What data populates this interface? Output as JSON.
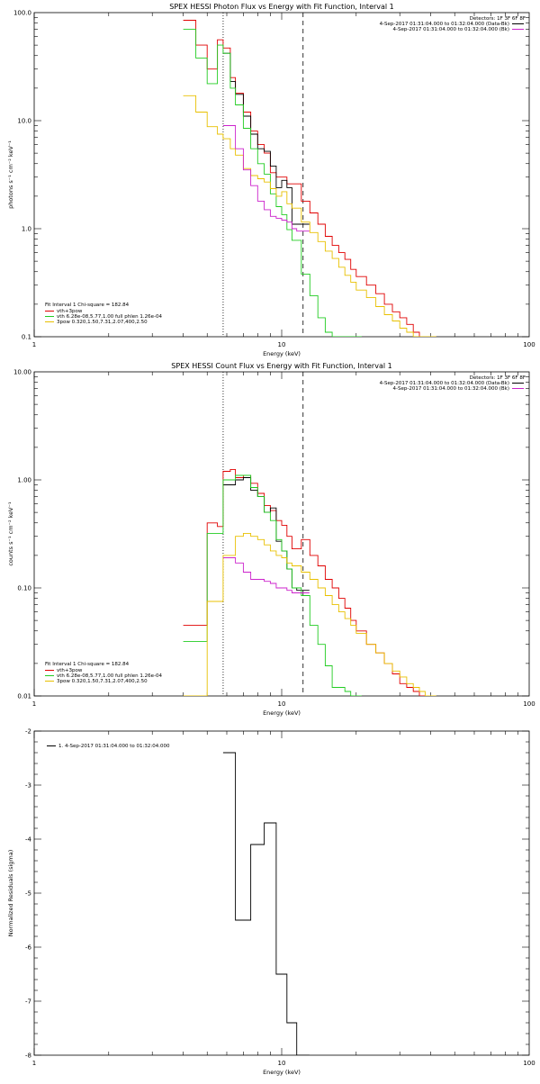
{
  "colors": {
    "black": "#000000",
    "red": "#e00000",
    "green": "#22cc22",
    "yellow": "#e8c000",
    "magenta": "#cc22cc"
  },
  "chart_data": [
    {
      "type": "line",
      "step": true,
      "title": "SPEX HESSI Photon Flux vs Energy with Fit Function, Interval 1",
      "xlabel": "Energy (keV)",
      "ylabel": "photons s⁻¹ cm⁻² keV⁻¹",
      "xscale": "log",
      "yscale": "log",
      "xlim": [
        1,
        100
      ],
      "ylim": [
        0.1,
        100
      ],
      "xticks": [
        {
          "v": 1,
          "label": "1"
        },
        {
          "v": 10,
          "label": "10"
        },
        {
          "v": 100,
          "label": "100"
        }
      ],
      "yticks": [
        {
          "v": 0.1,
          "label": "0.1"
        },
        {
          "v": 1,
          "label": "1.0"
        },
        {
          "v": 10,
          "label": "10.0"
        },
        {
          "v": 100,
          "label": "100.0"
        }
      ],
      "vlines": [
        {
          "x": 5.8,
          "style": "dotted",
          "color": "black"
        },
        {
          "x": 12.2,
          "style": "dashed",
          "color": "black"
        }
      ],
      "detectors": "Detectors: 1F 3F 6F 8F",
      "legend_right": [
        {
          "text": "4-Sep-2017 01:31:04.000 to 01:32:04.000 (Data-Bk)",
          "color": "black"
        },
        {
          "text": "4-Sep-2017 01:31:04.000 to 01:32:04.000 (Bk)",
          "color": "magenta"
        }
      ],
      "fit_header": "Fit Interval 1    Chi-square = 182.84",
      "legend_left": [
        {
          "text": "vth+3pow",
          "color": "red"
        },
        {
          "text": "vth 6.28e-08,5.77,1.00  full phlen 1.26e-04",
          "color": "green"
        },
        {
          "text": "3pow 0.320,1.50,7.31,2.07,400,2.50",
          "color": "yellow"
        }
      ],
      "series": [
        {
          "color": "red",
          "x": [
            4,
            4.5,
            5,
            5.5,
            5.8,
            6.2,
            6.5,
            7,
            7.5,
            8,
            8.5,
            9,
            9.5,
            10,
            10.5,
            11,
            12,
            13,
            14,
            15,
            16,
            17,
            18,
            19,
            20,
            22,
            24,
            26,
            28,
            30,
            32,
            34,
            36,
            38,
            40
          ],
          "y": [
            85,
            50,
            30,
            56,
            47,
            25,
            18,
            12,
            8,
            6,
            5,
            3.3,
            3,
            3,
            2.6,
            2.6,
            1.8,
            1.4,
            1.1,
            0.85,
            0.7,
            0.6,
            0.52,
            0.42,
            0.36,
            0.3,
            0.25,
            0.2,
            0.17,
            0.15,
            0.13,
            0.11,
            0.1,
            0.09,
            0.09
          ]
        },
        {
          "color": "black",
          "x": [
            5.8,
            6.2,
            6.5,
            7,
            7.5,
            8,
            8.5,
            9,
            9.5,
            10,
            10.5,
            11,
            11.5,
            12.2
          ],
          "y": [
            42,
            23,
            17.5,
            11,
            7.5,
            5.5,
            5.2,
            3.8,
            2.4,
            2.8,
            2.4,
            1.1,
            1.1,
            1.1
          ]
        },
        {
          "color": "green",
          "x": [
            4,
            4.5,
            5,
            5.5,
            5.8,
            6.2,
            6.5,
            7,
            7.5,
            8,
            8.5,
            9,
            9.5,
            10,
            10.5,
            11,
            12,
            13,
            14,
            15,
            16,
            17,
            18,
            19,
            20
          ],
          "y": [
            70,
            38,
            22,
            50,
            42,
            20,
            14,
            8.5,
            5.5,
            4,
            3.2,
            2.1,
            1.6,
            1.35,
            0.98,
            0.78,
            0.38,
            0.24,
            0.15,
            0.11,
            0.1,
            0.1,
            0.1,
            0.1,
            0.1
          ]
        },
        {
          "color": "yellow",
          "x": [
            4,
            4.5,
            5,
            5.5,
            5.8,
            6.2,
            6.5,
            7,
            7.5,
            8,
            8.5,
            9,
            9.5,
            10,
            10.5,
            11,
            12,
            13,
            14,
            15,
            16,
            17,
            18,
            19,
            20,
            22,
            24,
            26,
            28,
            30,
            32,
            34,
            36,
            38,
            40
          ],
          "y": [
            17,
            12,
            8.8,
            7.5,
            6.8,
            5.5,
            4.8,
            3.6,
            3.1,
            2.9,
            2.7,
            2.35,
            2,
            2.2,
            1.7,
            1.55,
            1.15,
            0.92,
            0.76,
            0.62,
            0.53,
            0.44,
            0.37,
            0.32,
            0.27,
            0.23,
            0.19,
            0.16,
            0.14,
            0.12,
            0.11,
            0.1,
            0.1,
            0.1,
            0.1
          ]
        },
        {
          "color": "magenta",
          "x": [
            5.8,
            6.2,
            6.5,
            7,
            7.5,
            8,
            8.5,
            9,
            9.5,
            10,
            10.5,
            11,
            11.5,
            12.2
          ],
          "y": [
            9,
            9,
            5.5,
            3.5,
            2.5,
            1.8,
            1.5,
            1.3,
            1.25,
            1.2,
            1.15,
            1,
            0.95,
            0.95
          ]
        }
      ]
    },
    {
      "type": "line",
      "step": true,
      "title": "SPEX HESSI Count Flux vs Energy with Fit Function, Interval 1",
      "xlabel": "Energy (keV)",
      "ylabel": "counts s⁻¹ cm⁻² keV⁻¹",
      "xscale": "log",
      "yscale": "log",
      "xlim": [
        1,
        100
      ],
      "ylim": [
        0.01,
        10
      ],
      "xticks": [
        {
          "v": 1,
          "label": "1"
        },
        {
          "v": 10,
          "label": "10"
        },
        {
          "v": 100,
          "label": "100"
        }
      ],
      "yticks": [
        {
          "v": 0.01,
          "label": "0.01"
        },
        {
          "v": 0.1,
          "label": "0.10"
        },
        {
          "v": 1,
          "label": "1.00"
        },
        {
          "v": 10,
          "label": "10.00"
        }
      ],
      "vlines": [
        {
          "x": 5.8,
          "style": "dotted",
          "color": "black"
        },
        {
          "x": 12.2,
          "style": "dashed",
          "color": "black"
        }
      ],
      "detectors": "Detectors: 1F 3F 6F 8F",
      "legend_right": [
        {
          "text": "4-Sep-2017 01:31:04.000 to 01:32:04.000 (Data-Bk)",
          "color": "black"
        },
        {
          "text": "4-Sep-2017 01:31:04.000 to 01:32:04.000 (Bk)",
          "color": "magenta"
        }
      ],
      "fit_header": "Fit Interval 1    Chi-square = 182.84",
      "legend_left": [
        {
          "text": "vth+3pow",
          "color": "red"
        },
        {
          "text": "vth 6.28e-08,5.77,1.00  full phlen 1.26e-04",
          "color": "green"
        },
        {
          "text": "3pow 0.320,1.50,7.31,2.07,400,2.50",
          "color": "yellow"
        }
      ],
      "series": [
        {
          "color": "red",
          "x": [
            4,
            4.5,
            5,
            5.5,
            5.8,
            6.2,
            6.5,
            7,
            7.5,
            8,
            8.5,
            9,
            9.5,
            10,
            10.5,
            11,
            12,
            13,
            14,
            15,
            16,
            17,
            18,
            19,
            20,
            22,
            24,
            26,
            28,
            30,
            32,
            34,
            36,
            38,
            40
          ],
          "y": [
            0.045,
            0.045,
            0.4,
            0.37,
            1.2,
            1.25,
            1.05,
            1.1,
            0.93,
            0.75,
            0.58,
            0.52,
            0.42,
            0.38,
            0.3,
            0.23,
            0.28,
            0.2,
            0.16,
            0.12,
            0.1,
            0.08,
            0.065,
            0.05,
            0.04,
            0.03,
            0.025,
            0.02,
            0.016,
            0.013,
            0.012,
            0.011,
            0.01,
            0.01,
            0.01
          ]
        },
        {
          "color": "black",
          "x": [
            5.8,
            6.2,
            6.5,
            7,
            7.5,
            8,
            8.5,
            9,
            9.5,
            10,
            10.5,
            11,
            11.5,
            12.2
          ],
          "y": [
            0.9,
            0.9,
            1.0,
            1.05,
            0.8,
            0.7,
            0.5,
            0.55,
            0.27,
            0.22,
            0.15,
            0.1,
            0.095,
            0.095
          ]
        },
        {
          "color": "green",
          "x": [
            4,
            4.5,
            5,
            5.5,
            5.8,
            6.2,
            6.5,
            7,
            7.5,
            8,
            8.5,
            9,
            9.5,
            10,
            10.5,
            11,
            12,
            13,
            14,
            15,
            16,
            17,
            18,
            19,
            20
          ],
          "y": [
            0.032,
            0.032,
            0.32,
            0.32,
            1.0,
            1.0,
            1.1,
            1.1,
            0.85,
            0.7,
            0.5,
            0.42,
            0.28,
            0.22,
            0.15,
            0.1,
            0.085,
            0.045,
            0.03,
            0.019,
            0.012,
            0.012,
            0.011,
            0.01,
            0.01
          ]
        },
        {
          "color": "yellow",
          "x": [
            4,
            4.5,
            5,
            5.5,
            5.8,
            6.2,
            6.5,
            7,
            7.5,
            8,
            8.5,
            9,
            9.5,
            10,
            10.5,
            11,
            12,
            13,
            14,
            15,
            16,
            17,
            18,
            19,
            20,
            22,
            24,
            26,
            28,
            30,
            32,
            34,
            36,
            38,
            40
          ],
          "y": [
            0.01,
            0.01,
            0.075,
            0.075,
            0.2,
            0.2,
            0.3,
            0.32,
            0.3,
            0.28,
            0.25,
            0.22,
            0.2,
            0.19,
            0.17,
            0.16,
            0.14,
            0.12,
            0.1,
            0.085,
            0.07,
            0.06,
            0.052,
            0.045,
            0.038,
            0.03,
            0.025,
            0.02,
            0.017,
            0.015,
            0.013,
            0.012,
            0.011,
            0.01,
            0.01
          ]
        },
        {
          "color": "magenta",
          "x": [
            5.8,
            6.2,
            6.5,
            7,
            7.5,
            8,
            8.5,
            9,
            9.5,
            10,
            10.5,
            11,
            11.5,
            12.2
          ],
          "y": [
            0.19,
            0.19,
            0.17,
            0.14,
            0.12,
            0.12,
            0.115,
            0.11,
            0.1,
            0.1,
            0.095,
            0.09,
            0.09,
            0.09
          ]
        }
      ]
    },
    {
      "type": "line",
      "step": true,
      "title": "",
      "xlabel": "Energy (keV)",
      "ylabel": "Normalized Residuals (sigma)",
      "xscale": "log",
      "yscale": "linear",
      "xlim": [
        1,
        100
      ],
      "ylim": [
        -8,
        -2
      ],
      "xticks": [
        {
          "v": 1,
          "label": "1"
        },
        {
          "v": 10,
          "label": "10"
        },
        {
          "v": 100,
          "label": "100"
        }
      ],
      "yticks": [
        {
          "v": -8,
          "label": "-8"
        },
        {
          "v": -7,
          "label": "-7"
        },
        {
          "v": -6,
          "label": "-6"
        },
        {
          "v": -5,
          "label": "-5"
        },
        {
          "v": -4,
          "label": "-4"
        },
        {
          "v": -3,
          "label": "-3"
        },
        {
          "v": -2,
          "label": "-2"
        }
      ],
      "vlines": [],
      "legend_left_top": [
        {
          "text": "1.  4-Sep-2017 01:31:04.000 to 01:32:04.000",
          "color": "black"
        }
      ],
      "series": [
        {
          "color": "black",
          "x": [
            5.8,
            6.5,
            7.5,
            8.5,
            9.5,
            10.5,
            11.5,
            12.2
          ],
          "y": [
            -2.4,
            -5.5,
            -4.1,
            -3.7,
            -6.5,
            -7.4,
            -8.0,
            -8.0
          ]
        }
      ]
    }
  ]
}
